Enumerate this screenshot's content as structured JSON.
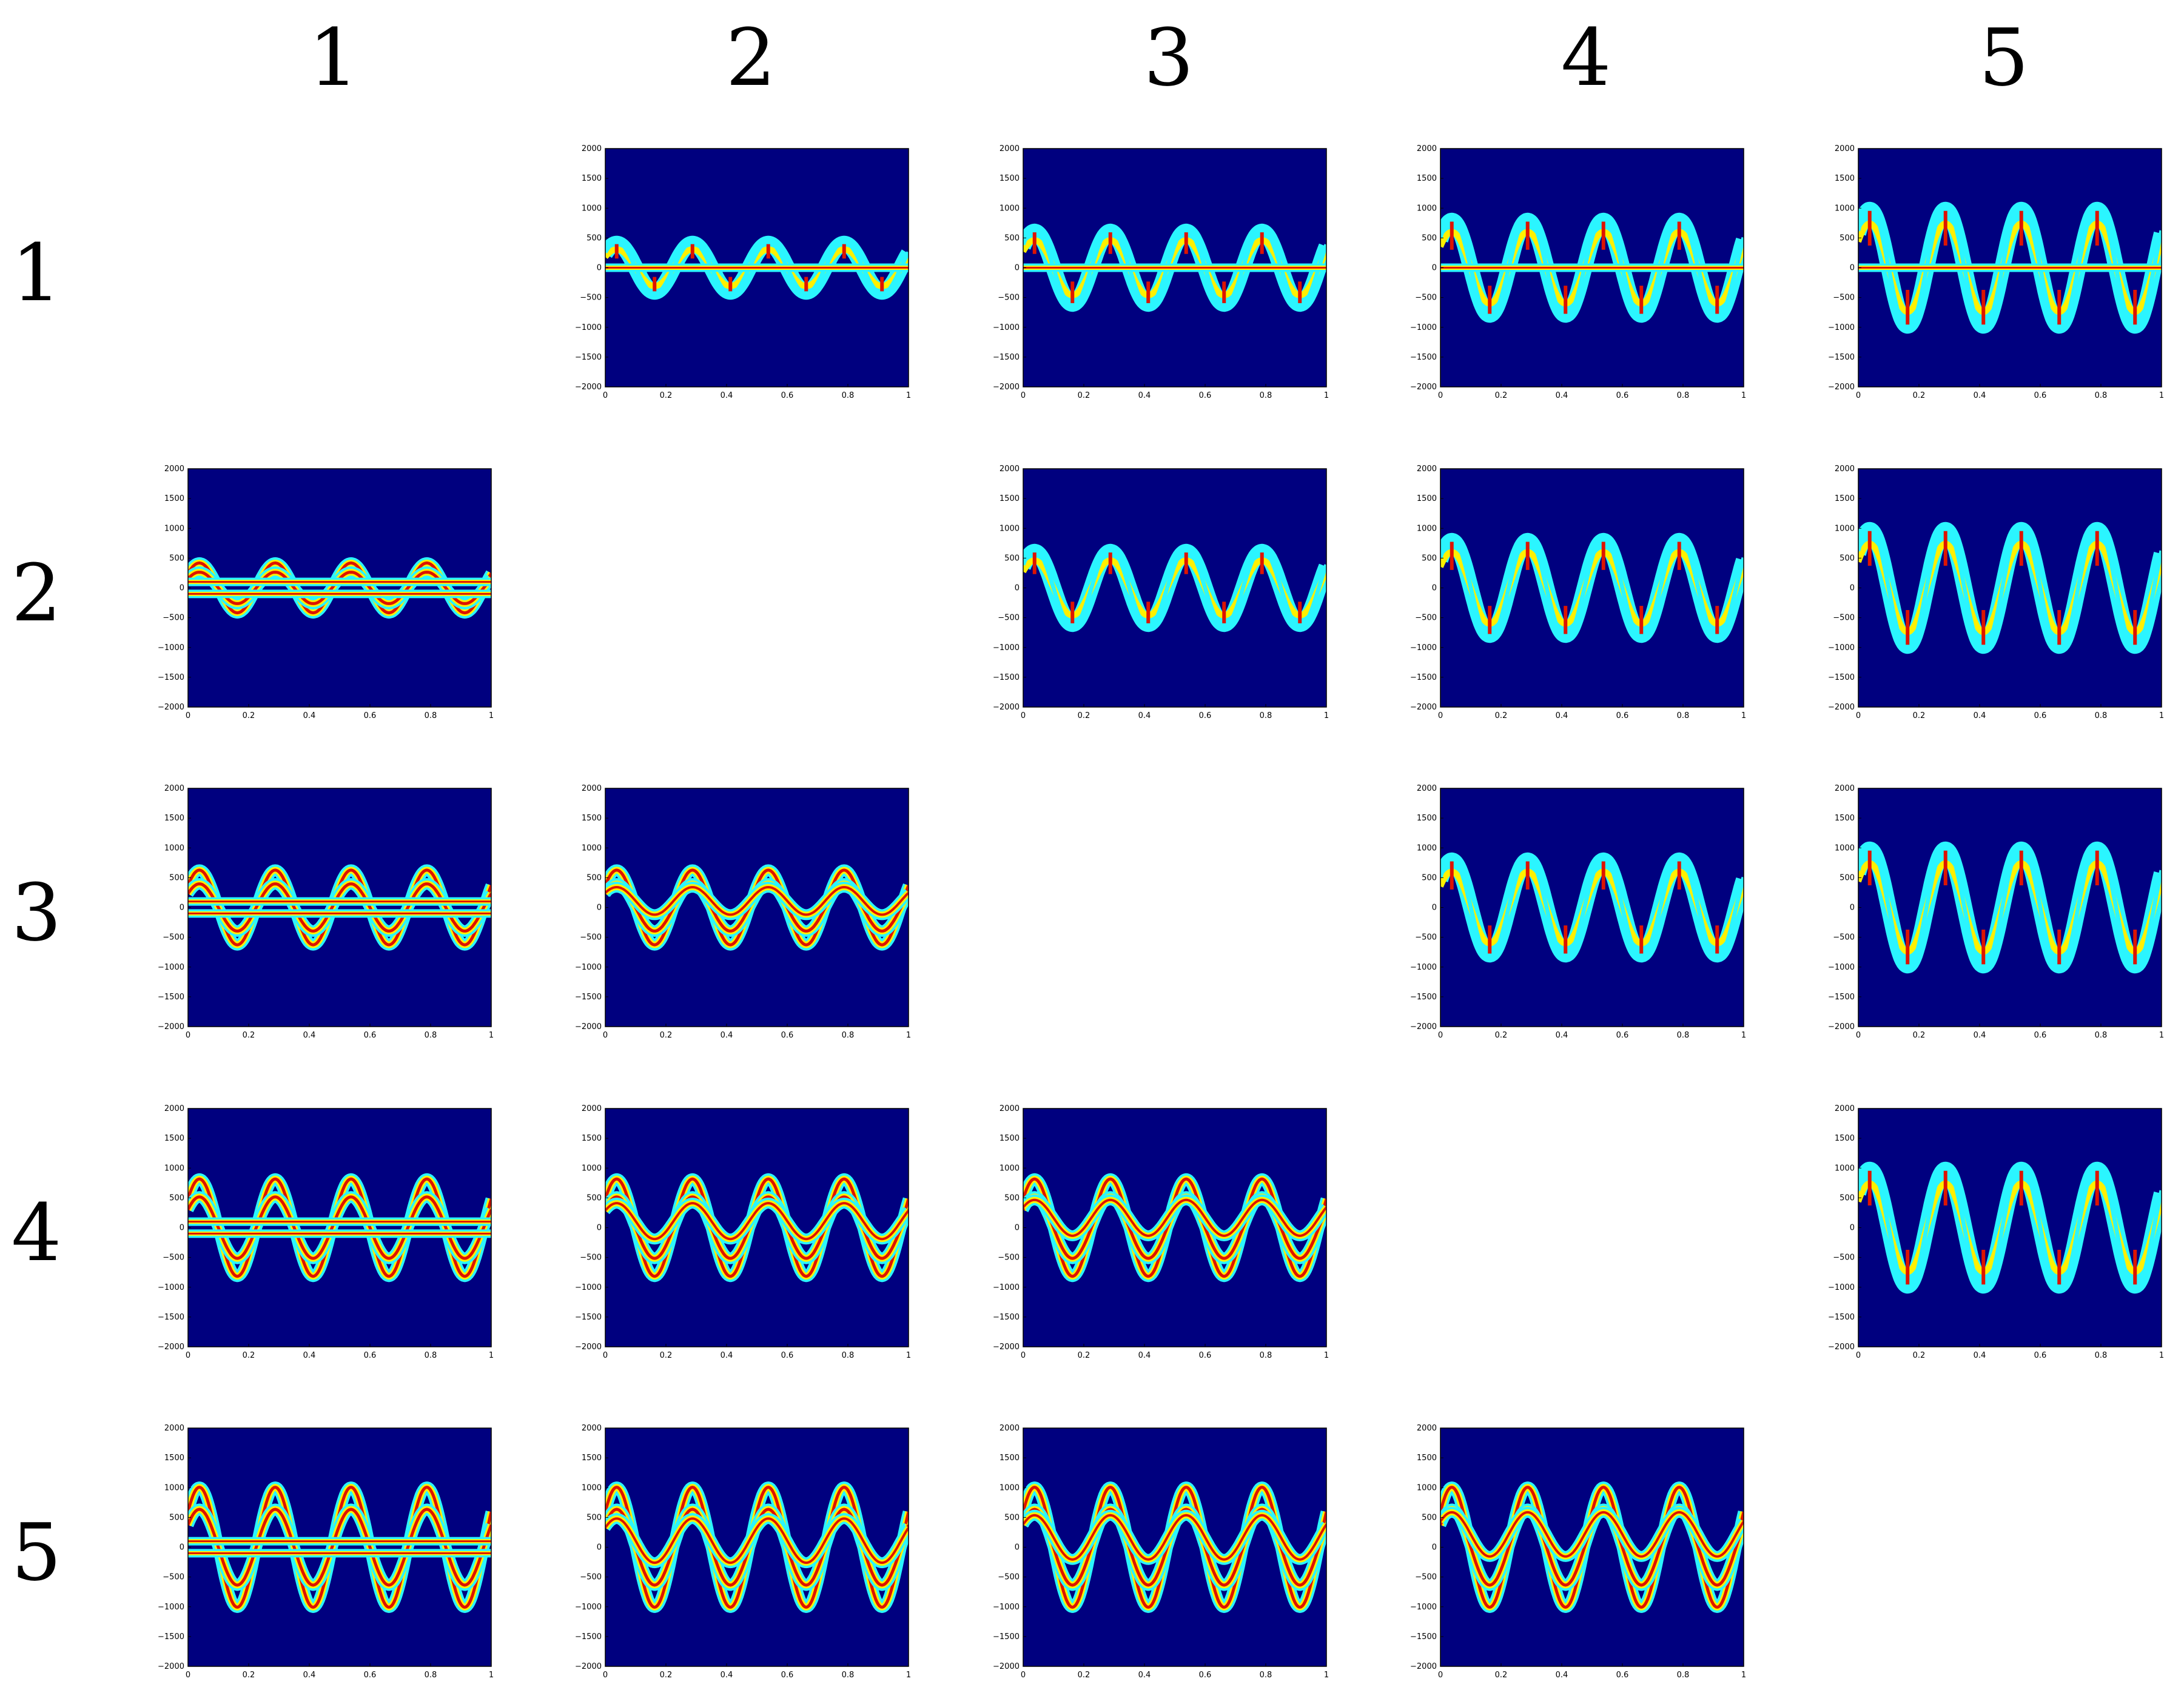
{
  "column_labels": [
    "1",
    "2",
    "3",
    "4",
    "5"
  ],
  "row_labels": [
    "1",
    "2",
    "3",
    "4",
    "5"
  ],
  "colors": {
    "background": "#00007f",
    "line_high": "#dd1400",
    "line_mid": "#fff000",
    "line_low": "#2bf5ff",
    "axis": "#000000"
  },
  "chart_data": {
    "type": "heatmap",
    "grid": "5x5 matrix of panels, diagonal cells empty",
    "x_ticks": [
      "0",
      "0.2",
      "0.4",
      "0.6",
      "0.8",
      "1"
    ],
    "y_ticks": [
      "2000",
      "1500",
      "1000",
      "500",
      "0",
      "−500",
      "−1000",
      "−1500",
      "−2000"
    ],
    "xlim": [
      0,
      1
    ],
    "ylim": [
      -2000,
      2000
    ],
    "sine_cycles": 4,
    "amplitude_by_index": [
      0,
      440,
      660,
      860,
      1060
    ],
    "panels": [
      {
        "row": 1,
        "col": 2,
        "upper": true
      },
      {
        "row": 1,
        "col": 3,
        "upper": true
      },
      {
        "row": 1,
        "col": 4,
        "upper": true
      },
      {
        "row": 1,
        "col": 5,
        "upper": true
      },
      {
        "row": 2,
        "col": 1,
        "upper": false
      },
      {
        "row": 2,
        "col": 3,
        "upper": true
      },
      {
        "row": 2,
        "col": 4,
        "upper": true
      },
      {
        "row": 2,
        "col": 5,
        "upper": true
      },
      {
        "row": 3,
        "col": 1,
        "upper": false
      },
      {
        "row": 3,
        "col": 2,
        "upper": false
      },
      {
        "row": 3,
        "col": 4,
        "upper": true
      },
      {
        "row": 3,
        "col": 5,
        "upper": true
      },
      {
        "row": 4,
        "col": 1,
        "upper": false
      },
      {
        "row": 4,
        "col": 2,
        "upper": false
      },
      {
        "row": 4,
        "col": 3,
        "upper": false
      },
      {
        "row": 4,
        "col": 5,
        "upper": true
      },
      {
        "row": 5,
        "col": 1,
        "upper": false
      },
      {
        "row": 5,
        "col": 2,
        "upper": false
      },
      {
        "row": 5,
        "col": 3,
        "upper": false
      },
      {
        "row": 5,
        "col": 4,
        "upper": false
      }
    ]
  }
}
